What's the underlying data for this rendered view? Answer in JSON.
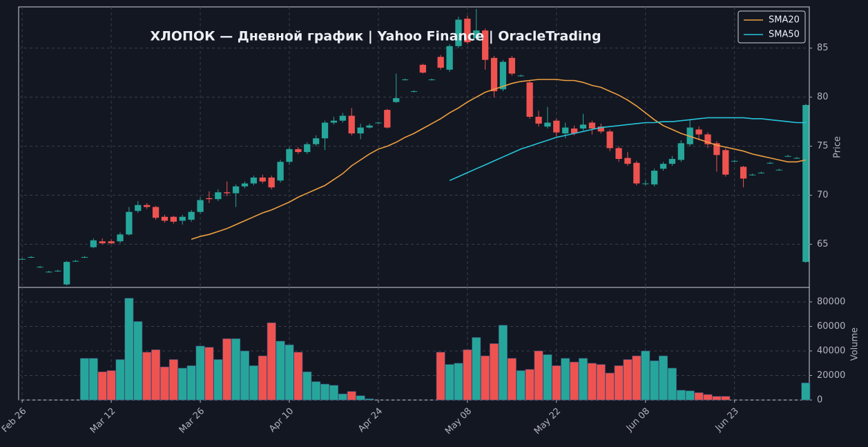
{
  "chart_data": {
    "type": "candlestick",
    "title": "ХЛОПОК  —  Дневной график  |  Yahoo Finance  |  OracleTrading",
    "categories": [
      "Feb 26",
      null,
      null,
      null,
      null,
      null,
      null,
      null,
      null,
      null,
      "Mar 12",
      null,
      null,
      null,
      null,
      null,
      null,
      null,
      null,
      null,
      "Mar 26",
      null,
      null,
      null,
      null,
      null,
      null,
      null,
      null,
      null,
      "Apr 10",
      null,
      null,
      null,
      null,
      null,
      null,
      null,
      null,
      null,
      "Apr 24",
      null,
      null,
      null,
      null,
      null,
      null,
      null,
      null,
      null,
      "May 08",
      null,
      null,
      null,
      null,
      null,
      null,
      null,
      null,
      null,
      "May 22",
      null,
      null,
      null,
      null,
      null,
      null,
      null,
      null,
      null,
      "Jun 08",
      null,
      null,
      null,
      null,
      null,
      null,
      null,
      null,
      null,
      "Jun 23",
      null,
      null,
      null,
      null,
      null,
      null,
      null,
      null
    ],
    "open": [
      63.5,
      63.7,
      62.7,
      62.2,
      62.3,
      60.9,
      63.3,
      63.7,
      64.7,
      65.3,
      65.3,
      65.3,
      66.0,
      68.4,
      69.0,
      68.8,
      67.8,
      67.8,
      67.4,
      67.5,
      68.3,
      69.7,
      69.6,
      70.3,
      70.2,
      70.9,
      71.2,
      71.8,
      71.8,
      71.5,
      73.4,
      74.7,
      74.4,
      75.2,
      75.8,
      77.4,
      77.6,
      78.1,
      76.3,
      76.9,
      77.4,
      78.7,
      79.5,
      81.8,
      80.6,
      83.3,
      81.8,
      84.1,
      82.8,
      85.2,
      88.0,
      86.0,
      86.8,
      84.0,
      80.8,
      84.0,
      82.2,
      81.5,
      78.0,
      77.0,
      77.6,
      76.3,
      76.8,
      76.8,
      77.4,
      77.0,
      76.5,
      74.8,
      73.8,
      73.3,
      71.2,
      71.1,
      72.7,
      73.2,
      73.6,
      75.2,
      76.7,
      76.2,
      75.3,
      74.6,
      73.5,
      72.9,
      72.1,
      72.3,
      73.3,
      72.6,
      74.0,
      73.8,
      63.2
    ],
    "high": [
      63.6,
      63.8,
      62.8,
      62.3,
      62.4,
      63.3,
      63.4,
      63.8,
      65.6,
      65.6,
      65.5,
      66.2,
      68.8,
      69.4,
      69.2,
      68.9,
      68.0,
      67.9,
      68.0,
      68.5,
      69.8,
      70.4,
      70.6,
      71.4,
      71.1,
      71.4,
      72.0,
      72.1,
      72.0,
      73.6,
      74.9,
      74.9,
      75.4,
      76.1,
      77.6,
      78.0,
      78.4,
      78.9,
      77.3,
      77.3,
      77.5,
      78.8,
      82.4,
      81.9,
      80.7,
      83.4,
      81.9,
      84.3,
      85.4,
      88.2,
      88.3,
      89.0,
      87.0,
      84.2,
      83.8,
      84.2,
      82.3,
      81.7,
      78.6,
      79.0,
      77.8,
      77.4,
      77.1,
      78.3,
      77.6,
      77.3,
      76.7,
      75.0,
      74.4,
      73.5,
      71.5,
      72.7,
      73.4,
      74.0,
      75.6,
      77.7,
      77.0,
      76.4,
      75.5,
      74.8,
      73.6,
      73.0,
      72.2,
      72.4,
      73.4,
      72.7,
      74.1,
      73.9,
      79.3
    ],
    "low": [
      63.4,
      63.6,
      62.6,
      62.1,
      62.2,
      60.8,
      63.2,
      63.6,
      64.6,
      65.0,
      65.0,
      65.1,
      65.9,
      68.2,
      68.6,
      67.5,
      67.2,
      67.1,
      67.0,
      67.3,
      68.1,
      69.2,
      69.4,
      69.9,
      68.8,
      70.7,
      71.0,
      71.2,
      70.6,
      71.3,
      73.1,
      74.2,
      74.2,
      75.0,
      74.6,
      77.2,
      77.4,
      76.1,
      75.7,
      76.8,
      77.3,
      76.8,
      79.4,
      81.7,
      80.5,
      82.4,
      81.7,
      82.8,
      82.6,
      85.0,
      85.4,
      85.8,
      82.8,
      80.0,
      80.6,
      82.2,
      82.1,
      77.8,
      77.0,
      76.8,
      76.0,
      75.8,
      76.1,
      76.6,
      76.2,
      76.3,
      74.5,
      73.4,
      73.0,
      71.0,
      71.0,
      70.9,
      72.5,
      73.0,
      73.4,
      75.0,
      75.6,
      74.8,
      72.4,
      71.9,
      73.4,
      70.8,
      72.0,
      72.2,
      73.2,
      72.5,
      73.9,
      73.7,
      63.1
    ],
    "close": [
      63.5,
      63.7,
      62.7,
      62.2,
      62.3,
      63.2,
      63.3,
      63.7,
      65.4,
      65.1,
      65.1,
      66.0,
      68.3,
      69.0,
      68.8,
      67.7,
      67.4,
      67.3,
      67.8,
      68.3,
      69.5,
      69.6,
      70.3,
      70.2,
      70.9,
      71.2,
      71.8,
      71.4,
      70.8,
      73.4,
      74.7,
      74.4,
      75.2,
      75.8,
      77.4,
      77.6,
      78.1,
      76.3,
      76.9,
      77.1,
      77.4,
      76.9,
      79.9,
      81.8,
      80.6,
      82.5,
      81.8,
      83.0,
      85.2,
      87.9,
      85.6,
      86.8,
      83.8,
      80.6,
      83.6,
      82.4,
      82.2,
      78.0,
      77.3,
      77.4,
      76.4,
      76.9,
      76.3,
      77.2,
      76.8,
      76.5,
      74.8,
      73.7,
      73.2,
      71.2,
      71.2,
      72.5,
      73.2,
      73.7,
      75.3,
      76.9,
      76.2,
      75.2,
      74.1,
      72.1,
      73.5,
      71.7,
      72.1,
      72.3,
      73.3,
      72.6,
      74.0,
      73.8,
      79.2
    ],
    "volume": [
      0,
      0,
      0,
      0,
      0,
      0,
      0,
      34000,
      34000,
      23000,
      24000,
      33000,
      83000,
      64000,
      39000,
      41000,
      27000,
      33000,
      26000,
      28000,
      44000,
      43000,
      33000,
      50000,
      50000,
      40000,
      28000,
      36000,
      63000,
      48000,
      45000,
      39000,
      23000,
      15000,
      13000,
      12000,
      5000,
      7000,
      3500,
      1000,
      0,
      0,
      0,
      0,
      0,
      0,
      0,
      39000,
      29000,
      30000,
      41000,
      51000,
      36000,
      46000,
      61000,
      34000,
      24000,
      25000,
      40000,
      37000,
      28000,
      34000,
      31000,
      34000,
      30000,
      29000,
      22000,
      28000,
      33000,
      36000,
      40000,
      32000,
      36000,
      26000,
      8000,
      7500,
      6000,
      4500,
      3000,
      3000,
      0,
      0,
      0,
      0,
      0,
      0,
      0,
      0,
      14000
    ],
    "series": [
      {
        "name": "SMA20",
        "color": "#f0a040",
        "values": [
          null,
          null,
          null,
          null,
          null,
          null,
          null,
          null,
          null,
          null,
          null,
          null,
          null,
          null,
          null,
          null,
          null,
          null,
          null,
          65.5,
          65.8,
          66.0,
          66.3,
          66.6,
          67.0,
          67.4,
          67.8,
          68.2,
          68.5,
          68.9,
          69.3,
          69.8,
          70.2,
          70.6,
          71.0,
          71.6,
          72.2,
          73.0,
          73.6,
          74.2,
          74.7,
          75.0,
          75.4,
          75.9,
          76.3,
          76.8,
          77.3,
          77.8,
          78.4,
          78.9,
          79.5,
          80.0,
          80.5,
          80.8,
          81.1,
          81.4,
          81.6,
          81.7,
          81.8,
          81.8,
          81.8,
          81.7,
          81.7,
          81.5,
          81.2,
          81.0,
          80.6,
          80.2,
          79.7,
          79.1,
          78.4,
          77.7,
          77.1,
          76.7,
          76.3,
          76.0,
          75.7,
          75.4,
          75.1,
          74.9,
          74.7,
          74.5,
          74.2,
          74.0,
          73.8,
          73.6,
          73.4,
          73.4,
          73.6
        ]
      },
      {
        "name": "SMA50",
        "color": "#26c6da",
        "values": [
          null,
          null,
          null,
          null,
          null,
          null,
          null,
          null,
          null,
          null,
          null,
          null,
          null,
          null,
          null,
          null,
          null,
          null,
          null,
          null,
          null,
          null,
          null,
          null,
          null,
          null,
          null,
          null,
          null,
          null,
          null,
          null,
          null,
          null,
          null,
          null,
          null,
          null,
          null,
          null,
          null,
          null,
          null,
          null,
          null,
          null,
          null,
          null,
          71.5,
          71.9,
          72.3,
          72.7,
          73.1,
          73.5,
          73.9,
          74.3,
          74.7,
          75.0,
          75.3,
          75.6,
          75.9,
          76.1,
          76.3,
          76.5,
          76.7,
          76.9,
          77.0,
          77.1,
          77.2,
          77.3,
          77.4,
          77.4,
          77.5,
          77.5,
          77.6,
          77.7,
          77.8,
          77.9,
          77.9,
          77.9,
          77.9,
          77.9,
          77.8,
          77.8,
          77.7,
          77.6,
          77.5,
          77.4,
          77.4
        ]
      }
    ],
    "up_color": "#26a69a",
    "down_color": "#ef5350",
    "xlim": [
      -0.4,
      88.4
    ],
    "ylim": [
      60.6,
      89.2
    ],
    "yticks": [
      65,
      70,
      75,
      80,
      85
    ],
    "ylabel": "Price",
    "volume_ylim": [
      0,
      91800
    ],
    "volume_yticks": [
      0,
      20000,
      40000,
      60000,
      80000
    ],
    "volume_label": "Volume",
    "grid": true,
    "legend": "upper right"
  }
}
